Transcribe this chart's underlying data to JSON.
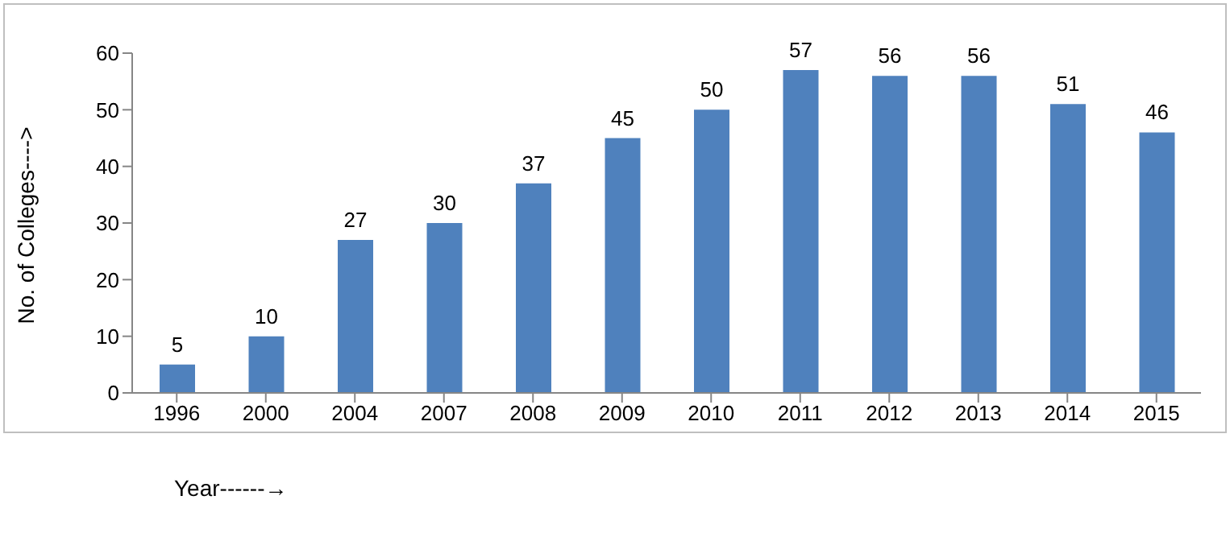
{
  "chart_data": {
    "type": "bar",
    "xlabel": "Year------→",
    "ylabel": "No. of Colleges---->",
    "categories": [
      "1996",
      "2000",
      "2004",
      "2007",
      "2008",
      "2009",
      "2010",
      "2011",
      "2012",
      "2013",
      "2014",
      "2015"
    ],
    "values": [
      5,
      10,
      27,
      30,
      37,
      45,
      50,
      57,
      56,
      56,
      51,
      46
    ],
    "color": "#4f81bd",
    "ylim": [
      0,
      60
    ],
    "yticks": [
      0,
      10,
      20,
      30,
      40,
      50,
      60
    ],
    "data_labels": true
  }
}
